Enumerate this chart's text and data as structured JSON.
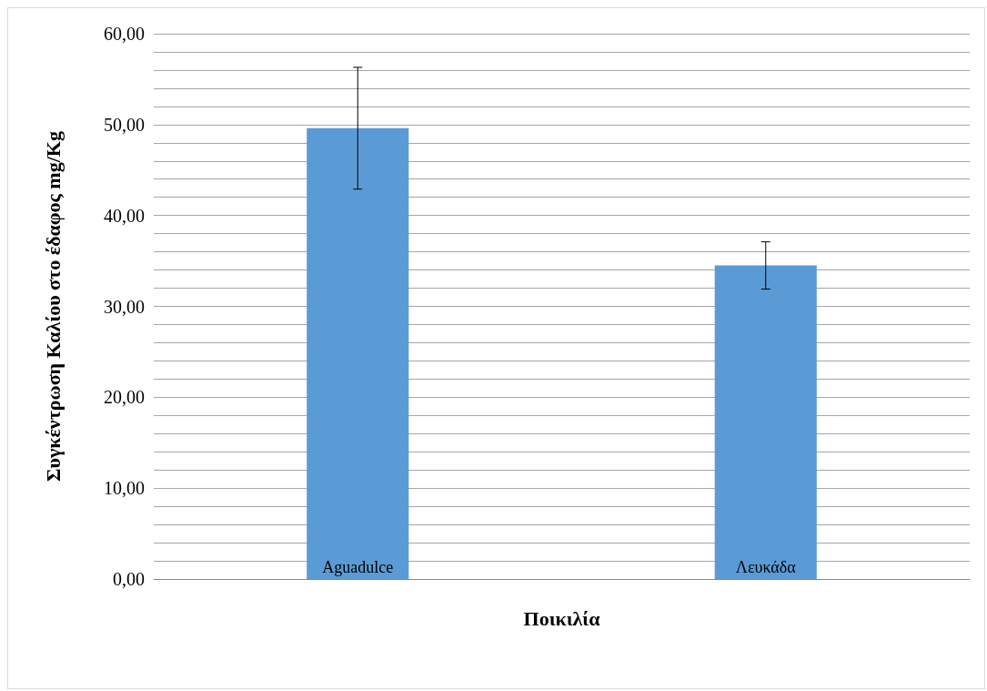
{
  "chart_data": {
    "type": "bar",
    "xlabel": "Ποικιλία",
    "ylabel": "Συγκέντρωση Καλίου στο έδαφος mg/Kg",
    "categories": [
      "Aguadulce",
      "Λευκάδα"
    ],
    "values": [
      49.6,
      34.5
    ],
    "errors": [
      6.7,
      2.6
    ],
    "color": "#5b9bd5",
    "ylim": [
      0,
      60
    ],
    "yticks": [
      {
        "value": 0,
        "label": "0,00"
      },
      {
        "value": 2,
        "label": null
      },
      {
        "value": 4,
        "label": null
      },
      {
        "value": 6,
        "label": null
      },
      {
        "value": 8,
        "label": null
      },
      {
        "value": 10,
        "label": "10,00"
      },
      {
        "value": 12,
        "label": null
      },
      {
        "value": 14,
        "label": null
      },
      {
        "value": 16,
        "label": null
      },
      {
        "value": 18,
        "label": null
      },
      {
        "value": 20,
        "label": "20,00"
      },
      {
        "value": 22,
        "label": null
      },
      {
        "value": 24,
        "label": null
      },
      {
        "value": 26,
        "label": null
      },
      {
        "value": 28,
        "label": null
      },
      {
        "value": 30,
        "label": "30,00"
      },
      {
        "value": 32,
        "label": null
      },
      {
        "value": 34,
        "label": null
      },
      {
        "value": 36,
        "label": null
      },
      {
        "value": 38,
        "label": null
      },
      {
        "value": 40,
        "label": "40,00"
      },
      {
        "value": 42,
        "label": null
      },
      {
        "value": 44,
        "label": null
      },
      {
        "value": 46,
        "label": null
      },
      {
        "value": 48,
        "label": null
      },
      {
        "value": 50,
        "label": "50,00"
      },
      {
        "value": 52,
        "label": null
      },
      {
        "value": 54,
        "label": null
      },
      {
        "value": 56,
        "label": null
      },
      {
        "value": 58,
        "label": null
      },
      {
        "value": 60,
        "label": "60,00"
      }
    ],
    "grid": true
  }
}
